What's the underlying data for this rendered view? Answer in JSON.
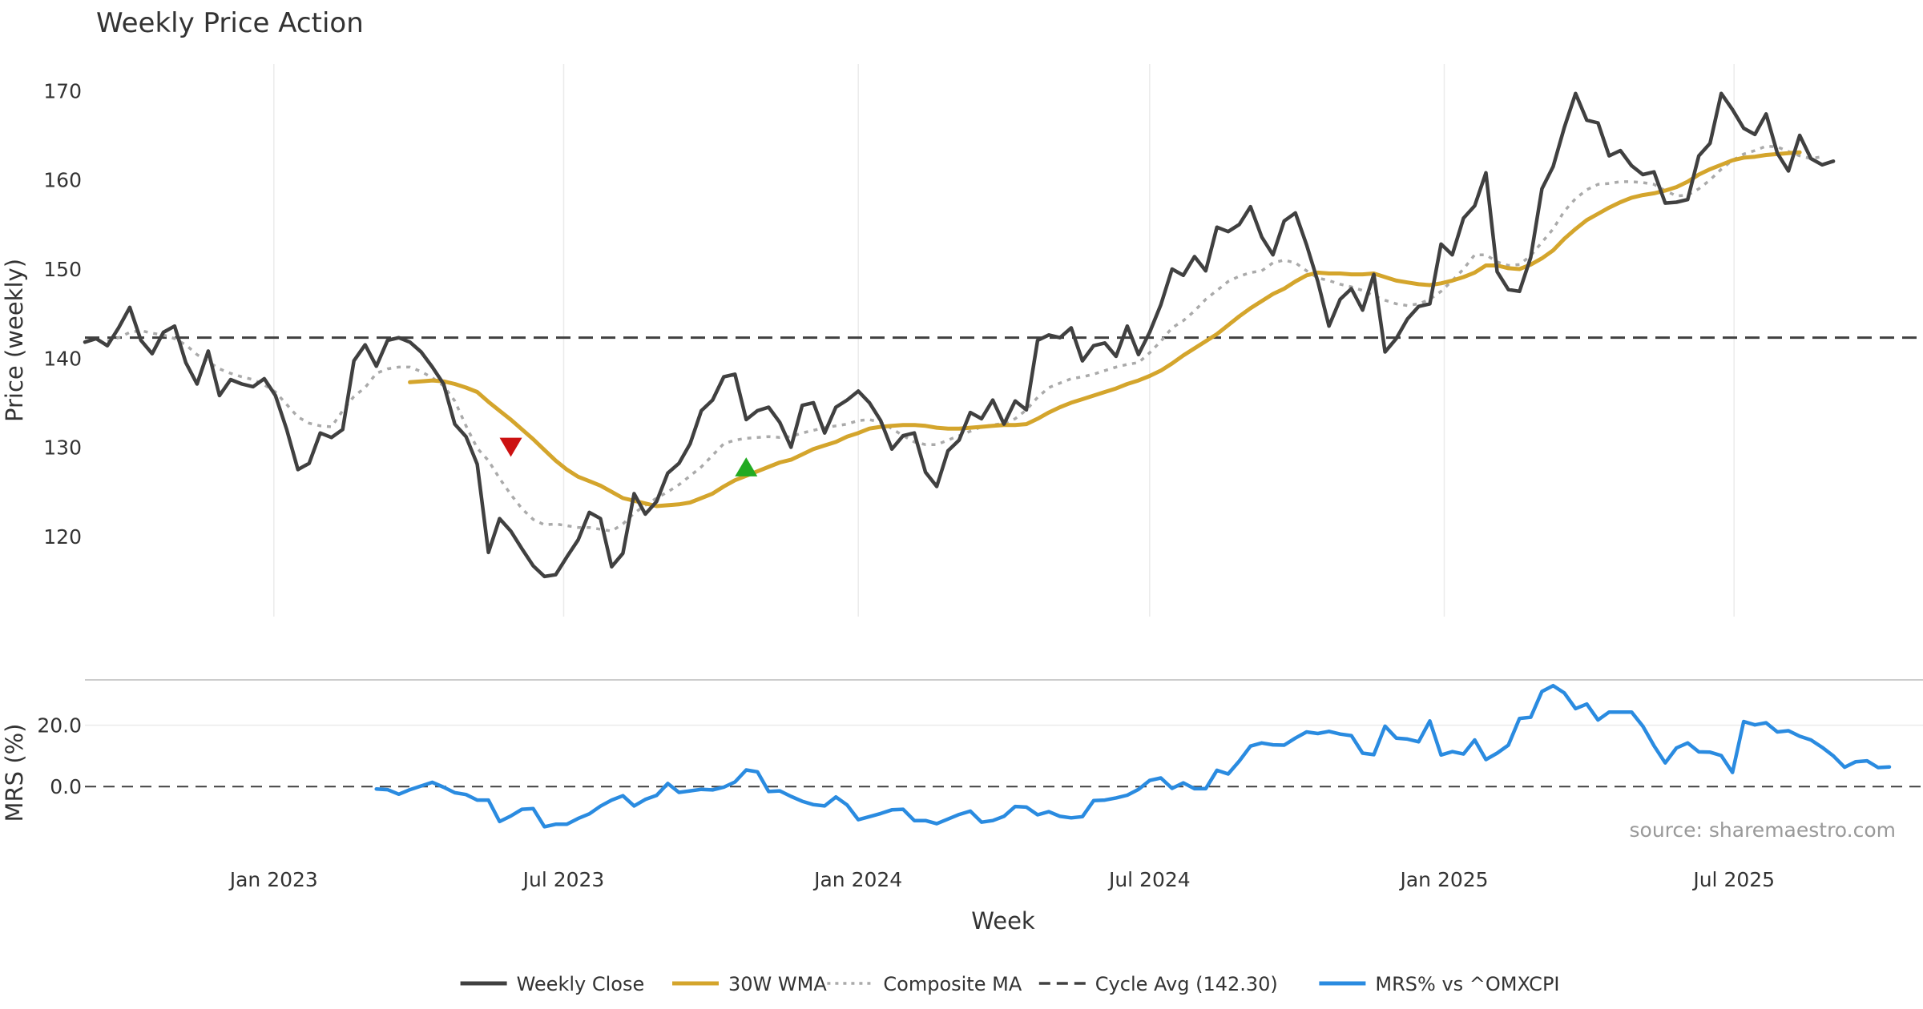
{
  "chart_data": [
    {
      "type": "line",
      "title": "Weekly Price Action",
      "ylabel": "Price (weekly)",
      "xlabel": "Week",
      "ylim": [
        111,
        173
      ],
      "yticks": [
        "120",
        "130",
        "140",
        "150",
        "160",
        "170"
      ],
      "ytick_values": [
        120,
        130,
        140,
        150,
        160,
        170
      ],
      "grid": true,
      "x_start": "2022-09-05",
      "x_step_days": 7,
      "series": [
        {
          "name": "Weekly Close",
          "color": "#404040",
          "values": [
            141.8,
            142.2,
            141.4,
            143.4,
            145.7,
            142.0,
            140.5,
            142.9,
            143.6,
            139.5,
            137.1,
            140.8,
            135.8,
            137.6,
            137.1,
            136.8,
            137.7,
            135.8,
            132.0,
            127.5,
            128.2,
            131.6,
            131.1,
            132.0,
            139.7,
            141.5,
            139.1,
            142.0,
            142.3,
            141.8,
            140.7,
            139.0,
            137.1,
            132.6,
            131.2,
            128.1,
            118.2,
            122.0,
            120.6,
            118.6,
            116.7,
            115.5,
            115.7,
            117.7,
            119.6,
            122.7,
            122.0,
            116.6,
            118.1,
            124.8,
            122.5,
            123.9,
            127.1,
            128.2,
            130.4,
            134.1,
            135.3,
            137.9,
            138.2,
            133.1,
            134.1,
            134.5,
            132.8,
            130.0,
            134.7,
            135.0,
            131.6,
            134.5,
            135.3,
            136.3,
            135.0,
            133.0,
            129.8,
            131.3,
            131.6,
            127.2,
            125.6,
            129.6,
            130.8,
            133.9,
            133.2,
            135.3,
            132.6,
            135.2,
            134.2,
            142.0,
            142.6,
            142.3,
            143.4,
            139.7,
            141.4,
            141.7,
            140.2,
            143.6,
            140.4,
            142.9,
            146.0,
            150.0,
            149.3,
            151.4,
            149.8,
            154.7,
            154.2,
            155.0,
            157.0,
            153.6,
            151.6,
            155.4,
            156.3,
            152.7,
            148.6,
            143.6,
            146.6,
            147.8,
            145.4,
            149.4,
            140.7,
            142.2,
            144.4,
            145.8,
            146.1,
            152.8,
            151.6,
            155.7,
            157.1,
            160.8,
            149.7,
            147.7,
            147.5,
            151.3,
            159.0,
            161.5,
            165.9,
            169.7,
            166.7,
            166.4,
            162.7,
            163.3,
            161.6,
            160.6,
            160.9,
            157.4,
            157.5,
            157.8,
            162.7,
            164.1,
            169.7,
            167.9,
            165.8,
            165.1,
            167.4,
            163.0,
            161.0,
            165.0,
            162.4,
            161.7,
            162.1
          ],
          "style": "solid"
        },
        {
          "name": "30W WMA",
          "color": "#d4a52c",
          "start_index": 29,
          "values": [
            137.3,
            137.4,
            137.5,
            137.4,
            137.1,
            136.7,
            136.2,
            135.1,
            134.1,
            133.1,
            132.0,
            130.9,
            129.7,
            128.5,
            127.5,
            126.7,
            126.2,
            125.7,
            125.0,
            124.3,
            124.0,
            123.7,
            123.4,
            123.5,
            123.6,
            123.8,
            124.3,
            124.8,
            125.6,
            126.3,
            126.8,
            127.3,
            127.8,
            128.3,
            128.6,
            129.2,
            129.8,
            130.2,
            130.6,
            131.2,
            131.6,
            132.1,
            132.3,
            132.4,
            132.5,
            132.5,
            132.4,
            132.2,
            132.1,
            132.1,
            132.2,
            132.3,
            132.4,
            132.5,
            132.5,
            132.6,
            133.2,
            133.9,
            134.5,
            135.0,
            135.4,
            135.8,
            136.2,
            136.6,
            137.1,
            137.5,
            138.0,
            138.6,
            139.4,
            140.3,
            141.1,
            141.9,
            142.7,
            143.7,
            144.7,
            145.6,
            146.4,
            147.2,
            147.8,
            148.6,
            149.3,
            149.6,
            149.5,
            149.5,
            149.4,
            149.4,
            149.5,
            149.1,
            148.7,
            148.5,
            148.3,
            148.2,
            148.4,
            148.7,
            149.1,
            149.6,
            150.4,
            150.4,
            150.1,
            150.0,
            150.5,
            151.2,
            152.1,
            153.4,
            154.5,
            155.5,
            156.2,
            156.9,
            157.5,
            158.0,
            158.3,
            158.5,
            158.8,
            159.2,
            159.8,
            160.6,
            161.2,
            161.7,
            162.2,
            162.5,
            162.6,
            162.8,
            162.9,
            163.0,
            163.1
          ],
          "style": "solid"
        },
        {
          "name": "Composite MA",
          "color": "#aaaaaa",
          "start_index": 2,
          "values": [
            141.9,
            142.3,
            142.9,
            143.1,
            142.8,
            142.6,
            142.2,
            141.5,
            140.4,
            139.6,
            138.8,
            138.3,
            137.9,
            137.6,
            137.0,
            136.2,
            134.8,
            133.4,
            132.7,
            132.4,
            132.3,
            134.1,
            135.7,
            136.7,
            138.3,
            138.8,
            139.0,
            139.0,
            138.5,
            137.8,
            136.9,
            135.2,
            132.4,
            129.9,
            128.5,
            126.5,
            124.7,
            123.1,
            121.9,
            121.3,
            121.4,
            121.2,
            121.0,
            121.0,
            120.8,
            120.6,
            121.4,
            122.6,
            123.5,
            124.3,
            125.0,
            125.8,
            126.8,
            127.8,
            129.1,
            130.4,
            130.8,
            131.0,
            131.1,
            131.2,
            131.1,
            131.2,
            131.6,
            131.9,
            132.2,
            132.4,
            132.6,
            133.0,
            133.1,
            132.8,
            132.1,
            131.3,
            130.6,
            130.3,
            130.3,
            130.8,
            131.3,
            131.8,
            132.3,
            132.5,
            132.7,
            133.2,
            134.2,
            135.6,
            136.7,
            137.2,
            137.7,
            137.9,
            138.2,
            138.6,
            139.0,
            139.3,
            139.5,
            140.6,
            141.9,
            143.4,
            144.2,
            145.3,
            146.6,
            147.6,
            148.6,
            149.2,
            149.6,
            149.8,
            150.7,
            151.0,
            150.7,
            149.8,
            149.0,
            148.7,
            148.3,
            148.0,
            147.6,
            147.0,
            146.5,
            146.1,
            145.9,
            146.1,
            146.6,
            147.5,
            148.7,
            150.0,
            151.6,
            151.6,
            150.8,
            150.4,
            150.5,
            151.5,
            153.0,
            154.5,
            156.5,
            157.9,
            158.9,
            159.5,
            159.6,
            159.8,
            159.8,
            159.7,
            159.5,
            158.8,
            158.2,
            158.3,
            159.0,
            160.0,
            161.2,
            162.2,
            162.9,
            163.3,
            163.8,
            163.7,
            163.2,
            162.7,
            162.4,
            162.6
          ],
          "style": "dotted"
        },
        {
          "name": "Cycle Avg (142.30)",
          "color": "#404040",
          "constant": 142.3,
          "style": "dashed"
        }
      ],
      "markers": [
        {
          "type": "sell",
          "shape": "triangle-down",
          "color": "#cc1111",
          "x_index": 38,
          "value": 130.0
        },
        {
          "type": "buy",
          "shape": "triangle-up",
          "color": "#22aa22",
          "x_index": 59,
          "value": 127.8
        }
      ]
    },
    {
      "type": "line",
      "ylabel": "MRS (%)",
      "ylim": [
        -19,
        34
      ],
      "yticks": [
        "0.0",
        "20.0"
      ],
      "ytick_values": [
        0,
        20
      ],
      "grid": true,
      "reference_line": 0,
      "series": [
        {
          "name": "MRS% vs ^OMXCPI",
          "color": "#2a8be0",
          "start_index": 26,
          "values": [
            -0.8,
            -1.0,
            -2.5,
            -1.0,
            0.2,
            1.4,
            -0.2,
            -2.0,
            -2.6,
            -4.4,
            -4.4,
            -11.4,
            -9.6,
            -7.4,
            -7.2,
            -13.1,
            -12.3,
            -12.3,
            -10.4,
            -8.9,
            -6.4,
            -4.4,
            -3.0,
            -6.3,
            -4.2,
            -2.9,
            1.0,
            -1.9,
            -1.4,
            -0.9,
            -1.1,
            -0.2,
            1.5,
            5.4,
            4.8,
            -1.6,
            -1.4,
            -3.2,
            -4.8,
            -5.9,
            -6.3,
            -3.4,
            -6.0,
            -10.8,
            -9.8,
            -8.8,
            -7.6,
            -7.4,
            -11.1,
            -11.1,
            -12.1,
            -10.6,
            -9.1,
            -8.0,
            -11.6,
            -11.1,
            -9.7,
            -6.5,
            -6.7,
            -9.2,
            -8.2,
            -9.7,
            -10.2,
            -9.8,
            -4.6,
            -4.4,
            -3.7,
            -2.8,
            -0.9,
            2.0,
            2.8,
            -0.6,
            1.2,
            -0.7,
            -0.7,
            5.3,
            4.1,
            8.3,
            13.2,
            14.2,
            13.6,
            13.5,
            15.8,
            17.8,
            17.3,
            18.0,
            17.1,
            16.6,
            10.9,
            10.4,
            19.7,
            15.8,
            15.5,
            14.6,
            21.4,
            10.3,
            11.4,
            10.6,
            15.2,
            8.8,
            10.9,
            13.5,
            22.2,
            22.6,
            31.0,
            32.9,
            30.5,
            25.4,
            26.9,
            21.7,
            24.3,
            24.3,
            24.3,
            19.7,
            13.3,
            7.7,
            12.6,
            14.2,
            11.3,
            11.2,
            10.1,
            4.6,
            21.2,
            20.1,
            20.8,
            17.8,
            18.2,
            16.4,
            15.2,
            12.8,
            10.0,
            6.3,
            8.1,
            8.4,
            6.2,
            6.4
          ],
          "style": "solid"
        }
      ]
    }
  ],
  "x_axis": {
    "title": "Week",
    "ticks": [
      {
        "label": "Jan 2023",
        "date": "2023-01-01"
      },
      {
        "label": "Jul 2023",
        "date": "2023-07-01"
      },
      {
        "label": "Jan 2024",
        "date": "2024-01-01"
      },
      {
        "label": "Jul 2024",
        "date": "2024-07-01"
      },
      {
        "label": "Jan 2025",
        "date": "2025-01-01"
      },
      {
        "label": "Jul 2025",
        "date": "2025-07-01"
      }
    ],
    "range": [
      "2022-09-05",
      "2025-10-27"
    ]
  },
  "legend": {
    "placement": "bottom-center",
    "items": [
      {
        "label": "Weekly Close",
        "color": "#404040",
        "style": "solid"
      },
      {
        "label": "30W WMA",
        "color": "#d4a52c",
        "style": "solid"
      },
      {
        "label": "Composite MA",
        "color": "#aaaaaa",
        "style": "dotted"
      },
      {
        "label": "Cycle Avg (142.30)",
        "color": "#404040",
        "style": "dashed"
      },
      {
        "label": "MRS% vs ^OMXCPI",
        "color": "#2a8be0",
        "style": "solid"
      }
    ]
  },
  "source": "source: sharemaestro.com"
}
